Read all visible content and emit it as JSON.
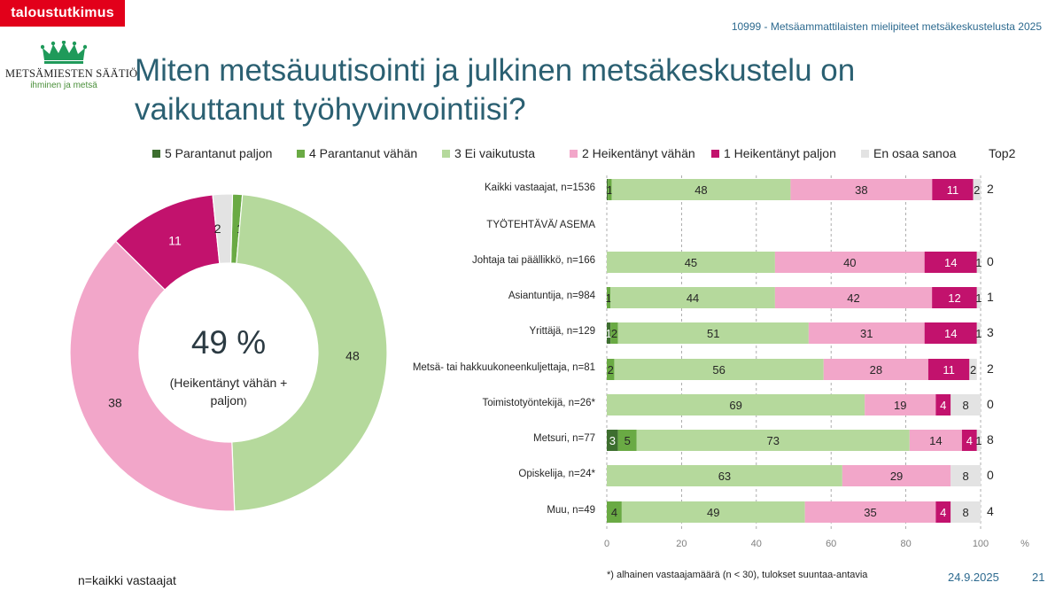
{
  "brand": "taloustutkimus",
  "study": "10999 - Metsäammattilaisten mielipiteet metsäkeskustelusta 2025",
  "logo": {
    "name": "METSÄMIESTEN SÄÄTIÖ",
    "tagline": "ihminen ja metsä"
  },
  "title": "Miten metsäuutisointi ja julkinen metsäkeskustelu on vaikuttanut työhyvinvointiisi?",
  "colors": {
    "c5": "#3d6e2f",
    "c4": "#6aaa44",
    "c3": "#b5d99c",
    "c2": "#f2a6c9",
    "c1": "#c2126d",
    "c0": "#e3e3e3"
  },
  "legend": [
    {
      "key": "c5",
      "label": "5 Parantanut paljon"
    },
    {
      "key": "c4",
      "label": "4 Parantanut vähän"
    },
    {
      "key": "c3",
      "label": "3 Ei vaikutusta"
    },
    {
      "key": "c2",
      "label": "2 Heikentänyt vähän"
    },
    {
      "key": "c1",
      "label": "1 Heikentänyt paljon"
    },
    {
      "key": "c0",
      "label": "En osaa sanoa"
    }
  ],
  "top2_label": "Top2",
  "donut_center": {
    "value": "49 %",
    "line1": "(Heikentänyt vähän +",
    "line2": "paljon",
    "line2_suffix": ")"
  },
  "section_label": "TYÖTEHTÄVÄ/ ASEMA",
  "x_axis": {
    "ticks": [
      "0",
      "20",
      "40",
      "60",
      "80",
      "100"
    ],
    "unit": "%"
  },
  "footnote_n": "n=kaikki vastaajat",
  "footnote_star": "*) alhainen vastaajamäärä (n < 30), tulokset suuntaa-antavia",
  "date": "24.9.2025",
  "page": "21",
  "chart_data": [
    {
      "type": "pie",
      "subtype": "donut",
      "series": [
        {
          "name": "5 Parantanut paljon",
          "value": 0,
          "label": "0"
        },
        {
          "name": "4 Parantanut vähän",
          "value": 1,
          "label": "1"
        },
        {
          "name": "3 Ei vaikutusta",
          "value": 48,
          "label": "48"
        },
        {
          "name": "2 Heikentänyt vähän",
          "value": 38,
          "label": "38"
        },
        {
          "name": "1 Heikentänyt paljon",
          "value": 11,
          "label": "11"
        },
        {
          "name": "En osaa sanoa",
          "value": 2,
          "label": "2"
        }
      ]
    },
    {
      "type": "bar",
      "orientation": "horizontal",
      "stacked": true,
      "xlim": [
        0,
        100
      ],
      "grid": "vertical dashed",
      "rows": [
        {
          "label": "Kaikki vastaajat, n=1536",
          "values": [
            0.3,
            1,
            48,
            38,
            11,
            2
          ],
          "labels": [
            "",
            "1",
            "48",
            "38",
            "11",
            "2"
          ],
          "top2": "2"
        },
        {
          "label": "Johtaja tai päällikkö, n=166",
          "values": [
            0,
            0,
            45,
            40,
            14,
            1
          ],
          "labels": [
            "",
            "",
            "45",
            "40",
            "14",
            "1"
          ],
          "top2": "0"
        },
        {
          "label": "Asiantuntija, n=984",
          "values": [
            0,
            1,
            44,
            42,
            12,
            1
          ],
          "labels": [
            "",
            "1",
            "44",
            "42",
            "12",
            "1"
          ],
          "top2": "1"
        },
        {
          "label": "Yrittäjä, n=129",
          "values": [
            1,
            2,
            51,
            31,
            14,
            1
          ],
          "labels": [
            "1",
            "2",
            "51",
            "31",
            "14",
            "1"
          ],
          "top2": "3"
        },
        {
          "label": "Metsä- tai hakkuukoneenkuljettaja, n=81",
          "values": [
            0,
            2,
            56,
            28,
            11,
            2
          ],
          "labels": [
            "",
            "2",
            "56",
            "28",
            "11",
            "2"
          ],
          "top2": "2"
        },
        {
          "label": "Toimistotyöntekijä, n=26*",
          "values": [
            0,
            0,
            69,
            19,
            4,
            8
          ],
          "labels": [
            "",
            "",
            "69",
            "19",
            "4",
            "8"
          ],
          "top2": "0"
        },
        {
          "label": "Metsuri, n=77",
          "values": [
            3,
            5,
            73,
            14,
            4,
            1
          ],
          "labels": [
            "3",
            "5",
            "73",
            "14",
            "4",
            "1"
          ],
          "top2": "8"
        },
        {
          "label": "Opiskelija, n=24*",
          "values": [
            0,
            0,
            63,
            29,
            0,
            8
          ],
          "labels": [
            "",
            "",
            "63",
            "29",
            "",
            "8"
          ],
          "top2": "0"
        },
        {
          "label": "Muu, n=49",
          "values": [
            0,
            4,
            49,
            35,
            4,
            8
          ],
          "labels": [
            "",
            "4",
            "49",
            "35",
            "4",
            "8"
          ],
          "top2": "4"
        }
      ]
    }
  ]
}
